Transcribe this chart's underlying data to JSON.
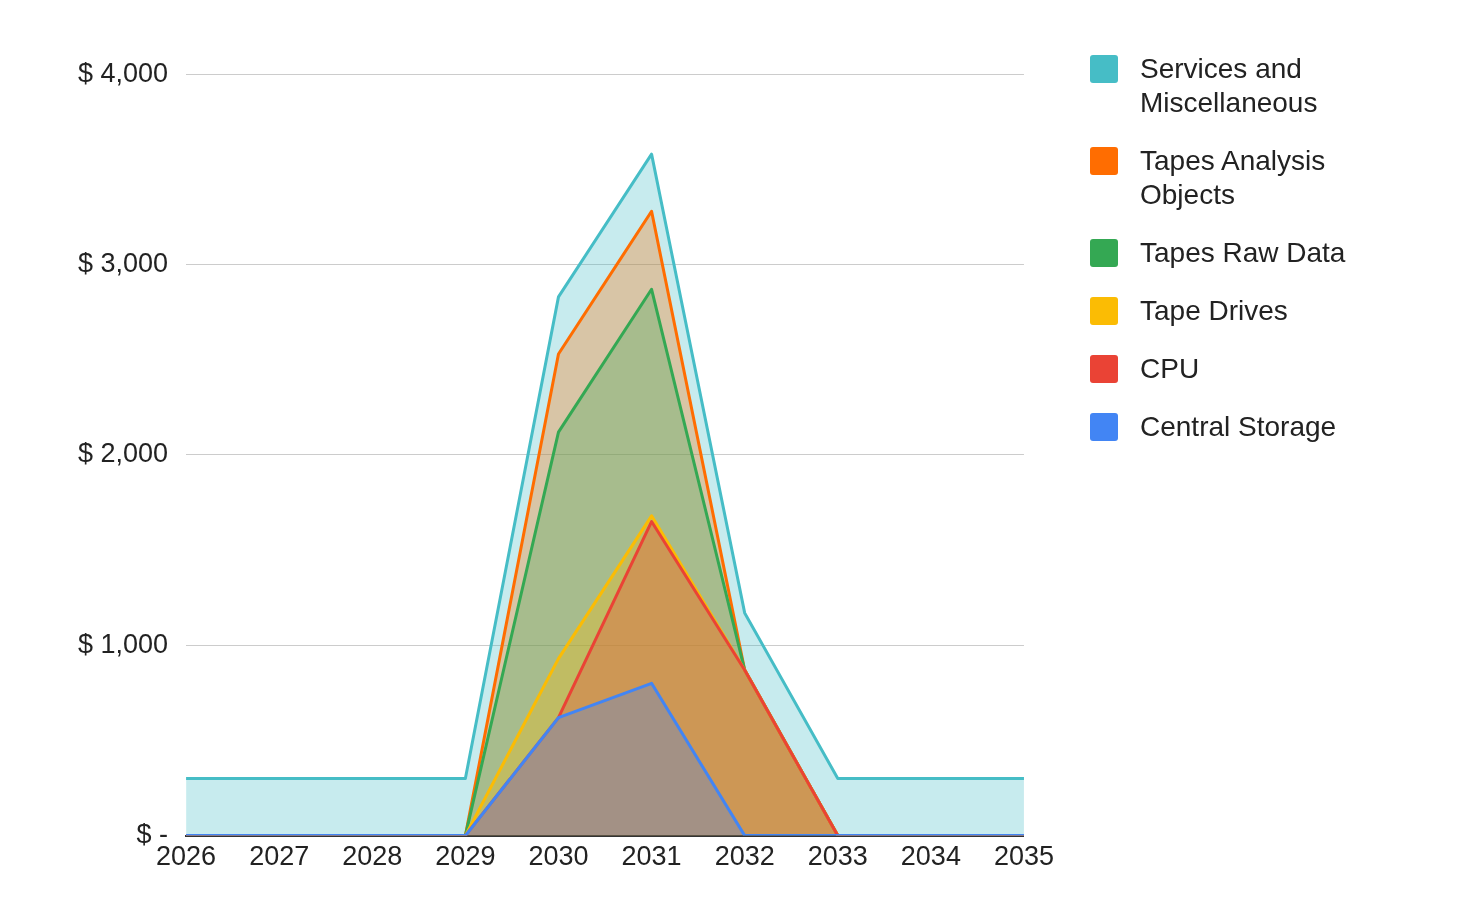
{
  "chart_data": {
    "type": "area",
    "stacked": true,
    "grid": "y",
    "legend": "right",
    "categories": [
      "2026",
      "2027",
      "2028",
      "2029",
      "2030",
      "2031",
      "2032",
      "2033",
      "2034",
      "2035"
    ],
    "ylim": [
      0,
      4000
    ],
    "yticks": [
      {
        "value": 0,
        "label": "$ -"
      },
      {
        "value": 1000,
        "label": "$ 1,000"
      },
      {
        "value": 2000,
        "label": "$ 2,000"
      },
      {
        "value": 3000,
        "label": "$ 3,000"
      },
      {
        "value": 4000,
        "label": "$ 4,000"
      }
    ],
    "series": [
      {
        "name": "Central Storage",
        "color": "#4285f4",
        "values": [
          0,
          0,
          0,
          0,
          620,
          800,
          0,
          0,
          0,
          0
        ]
      },
      {
        "name": "CPU",
        "color": "#ea4335",
        "values": [
          0,
          0,
          0,
          0,
          0,
          850,
          870,
          0,
          0,
          0
        ]
      },
      {
        "name": "Tape Drives",
        "color": "#fbbc04",
        "values": [
          0,
          0,
          0,
          0,
          310,
          30,
          0,
          0,
          0,
          0
        ]
      },
      {
        "name": "Tapes Raw Data",
        "color": "#34a853",
        "values": [
          0,
          0,
          0,
          0,
          1190,
          1190,
          0,
          0,
          0,
          0
        ]
      },
      {
        "name": "Tapes Analysis Objects",
        "color": "#ff6d01",
        "values": [
          0,
          0,
          0,
          0,
          410,
          410,
          0,
          0,
          0,
          0
        ]
      },
      {
        "name": "Services and Miscellaneous",
        "color": "#46bdc6",
        "values": [
          300,
          300,
          300,
          300,
          300,
          300,
          300,
          300,
          300,
          300
        ]
      }
    ]
  }
}
